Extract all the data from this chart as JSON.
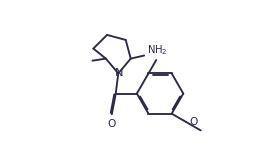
{
  "bg_color": "#ffffff",
  "line_color": "#2a2a48",
  "text_color": "#2a2a48",
  "font_size": 7.2,
  "line_width": 1.35,
  "dbo": 0.05,
  "figsize": [
    2.66,
    1.51
  ],
  "dpi": 100,
  "xlim": [
    -0.5,
    9.5
  ],
  "ylim": [
    -0.3,
    5.5
  ]
}
